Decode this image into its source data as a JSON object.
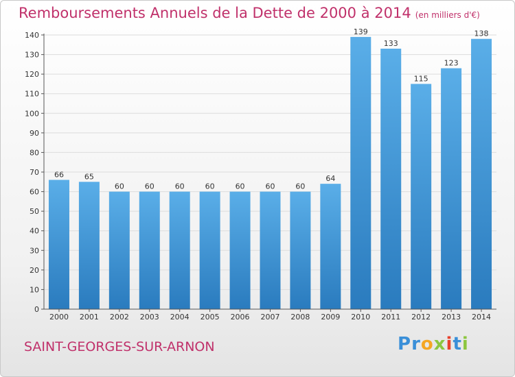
{
  "header": {
    "title": "Remboursements Annuels de la Dette de 2000 à 2014",
    "unit": "(en milliers d'€)"
  },
  "footer": {
    "city": "SAINT-GEORGES-SUR-ARNON",
    "logo_letters": [
      "P",
      "r",
      "o",
      "x",
      "i",
      "t",
      "i"
    ]
  },
  "colors": {
    "title": "#c0306a",
    "bar_light": "#5aaee8",
    "bar_dark": "#2a7bbe",
    "logo": [
      "#3a8fd8",
      "#3a8fd8",
      "#f5a623",
      "#8cc63f",
      "#e8412c",
      "#3a8fd8",
      "#8cc63f"
    ]
  },
  "chart_data": {
    "type": "bar",
    "categories": [
      "2000",
      "2001",
      "2002",
      "2003",
      "2004",
      "2005",
      "2006",
      "2007",
      "2008",
      "2009",
      "2010",
      "2011",
      "2012",
      "2013",
      "2014"
    ],
    "values": [
      66,
      65,
      60,
      60,
      60,
      60,
      60,
      60,
      60,
      64,
      139,
      133,
      115,
      123,
      138
    ],
    "title": "Remboursements Annuels de la Dette de 2000 à 2014",
    "ylim": [
      0,
      140
    ],
    "yticks": [
      0,
      10,
      20,
      30,
      40,
      50,
      60,
      70,
      80,
      90,
      100,
      110,
      120,
      130,
      140
    ],
    "grid": true,
    "data_labels": true
  }
}
